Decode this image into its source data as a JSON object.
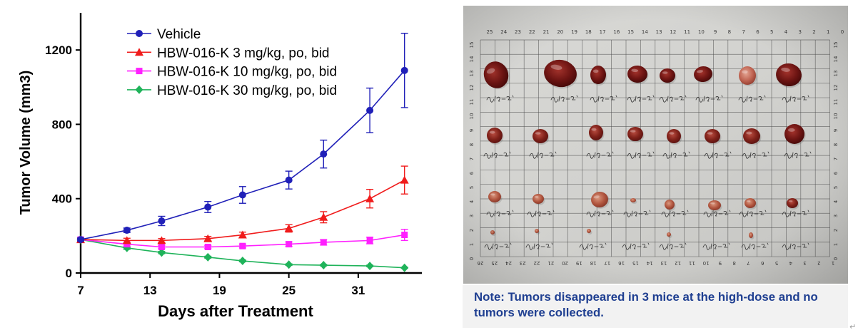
{
  "chart_data": {
    "type": "line",
    "xlabel": "Days after Treatment",
    "ylabel": "Tumor Volume (mm3)",
    "xlim": [
      7,
      36.5
    ],
    "ylim": [
      0,
      1400
    ],
    "x_ticks": [
      7,
      13,
      19,
      25,
      31
    ],
    "y_ticks": [
      0,
      400,
      800,
      1200
    ],
    "grid": false,
    "legend": "top-left",
    "x": [
      7,
      11,
      14,
      18,
      21,
      25,
      28,
      32,
      35
    ],
    "series": [
      {
        "name": "Vehicle",
        "color": "#2020b8",
        "marker": "circle",
        "values": [
          180,
          230,
          280,
          355,
          420,
          500,
          640,
          875,
          1090
        ],
        "errors": [
          8,
          12,
          25,
          30,
          45,
          48,
          75,
          120,
          200
        ]
      },
      {
        "name": "HBW-016-K 3 mg/kg, po, bid",
        "color": "#f01c1c",
        "marker": "triangle",
        "values": [
          180,
          175,
          175,
          185,
          205,
          240,
          300,
          400,
          500
        ],
        "errors": [
          8,
          12,
          10,
          12,
          15,
          20,
          30,
          50,
          75
        ]
      },
      {
        "name": "HBW-016-K 10 mg/kg, po, bid",
        "color": "#ff20ff",
        "marker": "square",
        "values": [
          180,
          155,
          140,
          140,
          145,
          155,
          165,
          175,
          205
        ],
        "errors": [
          8,
          10,
          8,
          8,
          10,
          12,
          15,
          18,
          30
        ]
      },
      {
        "name": "HBW-016-K 30 mg/kg, po, bid",
        "color": "#1fb35a",
        "marker": "diamond",
        "values": [
          180,
          135,
          110,
          85,
          65,
          45,
          42,
          38,
          28
        ],
        "errors": [
          8,
          8,
          6,
          5,
          5,
          4,
          4,
          4,
          3
        ]
      }
    ]
  },
  "photo": {
    "ruler_top": [
      25,
      24,
      23,
      22,
      21,
      20,
      19,
      18,
      17,
      16,
      15,
      14,
      13,
      12,
      11,
      10,
      9,
      8,
      7,
      6,
      5,
      4,
      3,
      2,
      1,
      0
    ],
    "ruler_bottom": [
      26,
      25,
      24,
      23,
      22,
      21,
      20,
      19,
      18,
      17,
      16,
      15,
      14,
      13,
      12,
      11,
      10,
      9,
      8,
      7,
      6,
      5,
      4,
      3,
      2,
      1
    ],
    "ruler_left": [
      15,
      14,
      13,
      12,
      11,
      10,
      9,
      8,
      7,
      6,
      5,
      4,
      3,
      2,
      1,
      0
    ],
    "ruler_right": [
      15,
      14,
      13,
      12,
      11,
      10,
      9,
      8,
      7,
      6,
      5,
      4,
      3,
      2,
      1,
      0
    ]
  },
  "note": {
    "text": "Note: Tumors disappeared in 3 mice at the high-dose and no tumors were collected."
  },
  "return_mark": "↵"
}
